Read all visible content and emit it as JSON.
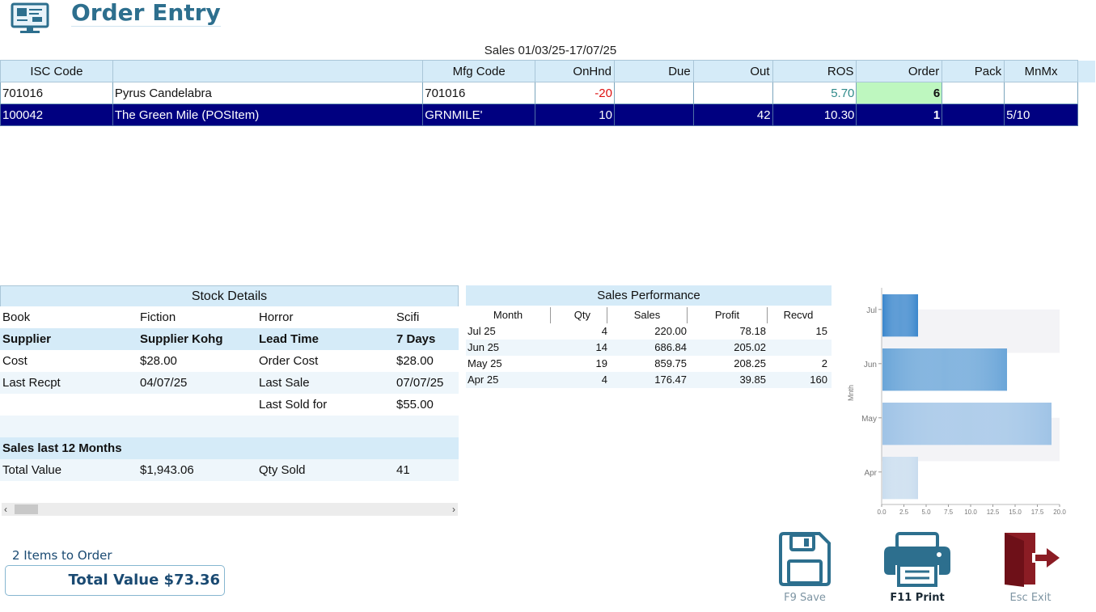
{
  "header": {
    "title": "Order Entry",
    "app_icon": "monitor-order-icon"
  },
  "sales_range": "Sales 01/03/25-17/07/25",
  "grid": {
    "columns": [
      "ISC Code",
      "",
      "Mfg Code",
      "OnHnd",
      "Due",
      "Out",
      "ROS",
      "Order",
      "Pack",
      "MnMx"
    ],
    "rows": [
      {
        "isc": "701016",
        "desc": "Pyrus Candelabra",
        "mfg": "701016",
        "onhnd": "-20",
        "due": "",
        "out": "",
        "ros": "5.70",
        "order": "6",
        "pack": "",
        "mnmx": ""
      },
      {
        "isc": "100042",
        "desc": "The Green Mile (POSItem)",
        "mfg": "GRNMILE'",
        "onhnd": "10",
        "due": "",
        "out": "42",
        "ros": "10.30",
        "order": "1",
        "pack": "",
        "mnmx": "5/10"
      }
    ]
  },
  "stock_details": {
    "title": "Stock Details",
    "rows": [
      {
        "a": "Book",
        "b": "Fiction",
        "c": "Horror",
        "d": "Scifi"
      },
      {
        "a": "Supplier",
        "b": "Supplier Kohg",
        "c": "Lead Time",
        "d": "7 Days"
      },
      {
        "a": "Cost",
        "b": "$28.00",
        "c": "Order Cost",
        "d": "$28.00"
      },
      {
        "a": "Last Recpt",
        "b": "04/07/25",
        "c": "Last Sale",
        "d": "07/07/25"
      },
      {
        "a": "",
        "b": "",
        "c": "Last Sold for",
        "d": "$55.00"
      },
      {
        "a": "",
        "b": "",
        "c": "",
        "d": ""
      },
      {
        "a": "Sales last 12 Months",
        "b": "",
        "c": "",
        "d": ""
      },
      {
        "a": "Total Value",
        "b": "$1,943.06",
        "c": "Qty Sold",
        "d": "41"
      }
    ]
  },
  "sales_performance": {
    "title": "Sales Performance",
    "columns": [
      "Month",
      "Qty",
      "Sales",
      "Profit",
      "Recvd"
    ],
    "rows": [
      {
        "month": "Jul 25",
        "qty": "4",
        "sales": "220.00",
        "profit": "78.18",
        "recvd": "15"
      },
      {
        "month": "Jun 25",
        "qty": "14",
        "sales": "686.84",
        "profit": "205.02",
        "recvd": ""
      },
      {
        "month": "May 25",
        "qty": "19",
        "sales": "859.75",
        "profit": "208.25",
        "recvd": "2"
      },
      {
        "month": "Apr 25",
        "qty": "4",
        "sales": "176.47",
        "profit": "39.85",
        "recvd": "160"
      }
    ]
  },
  "chart_data": {
    "type": "bar",
    "orientation": "horizontal",
    "categories": [
      "Jul",
      "Jun",
      "May",
      "Apr"
    ],
    "values": [
      4,
      14,
      19,
      4
    ],
    "ylabel": "Mnth",
    "xlabel": "",
    "xlim": [
      0,
      20
    ],
    "xticks": [
      "0.0",
      "2.5",
      "5.0",
      "7.5",
      "10.0",
      "12.5",
      "15.0",
      "17.5",
      "20.0"
    ],
    "colors": [
      "#3a86cc",
      "#6aa5d8",
      "#9fc3e6",
      "#c8dcee"
    ]
  },
  "footer": {
    "items_to_order": "2 Items to Order",
    "total_value": "Total Value $73.36"
  },
  "toolbar": {
    "save_label": "F9 Save",
    "print_label": "F11 Print",
    "exit_label": "Esc Exit"
  },
  "colors": {
    "accent": "#2d6f8e",
    "header_bg": "#d5ebf8",
    "selected_row": "#000080",
    "order_cell": "#bef7bf",
    "exit_red": "#8b1c24"
  }
}
